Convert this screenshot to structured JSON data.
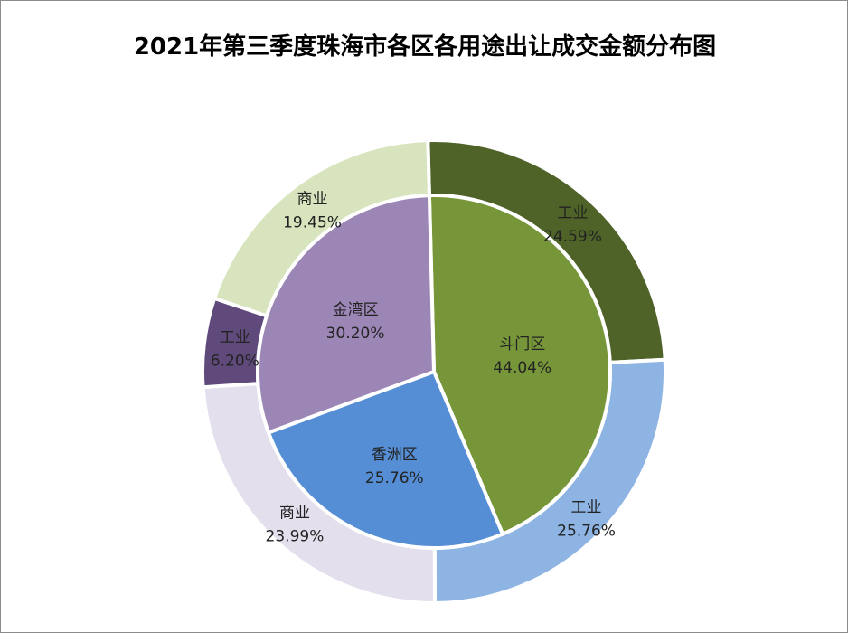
{
  "chart_data": {
    "type": "pie",
    "subtype": "nested-donut",
    "title": "2021年第三季度珠海市各区各用途出让成交金额分布图",
    "legend": "none",
    "inner_ring": [
      {
        "name": "斗门区",
        "pct_label": "44.04%",
        "value": 44.04,
        "color": "#77963a"
      },
      {
        "name": "香洲区",
        "pct_label": "25.76%",
        "value": 25.76,
        "color": "#558ed5"
      },
      {
        "name": "金湾区",
        "pct_label": "30.20%",
        "value": 30.2,
        "color": "#9c86b6"
      }
    ],
    "outer_ring": [
      {
        "name": "工业",
        "pct_label": "24.59%",
        "value": 24.59,
        "color": "#4f6228"
      },
      {
        "name": "工业",
        "pct_label": "25.76%",
        "value": 25.76,
        "color": "#8eb4e3"
      },
      {
        "name": "商业",
        "pct_label": "23.99%",
        "value": 23.99,
        "color": "#e4dfec"
      },
      {
        "name": "工业",
        "pct_label": "6.20%",
        "value": 6.2,
        "color": "#604a7b"
      },
      {
        "name": "商业",
        "pct_label": "19.45%",
        "value": 19.45,
        "color": "#d7e4bd"
      }
    ]
  }
}
